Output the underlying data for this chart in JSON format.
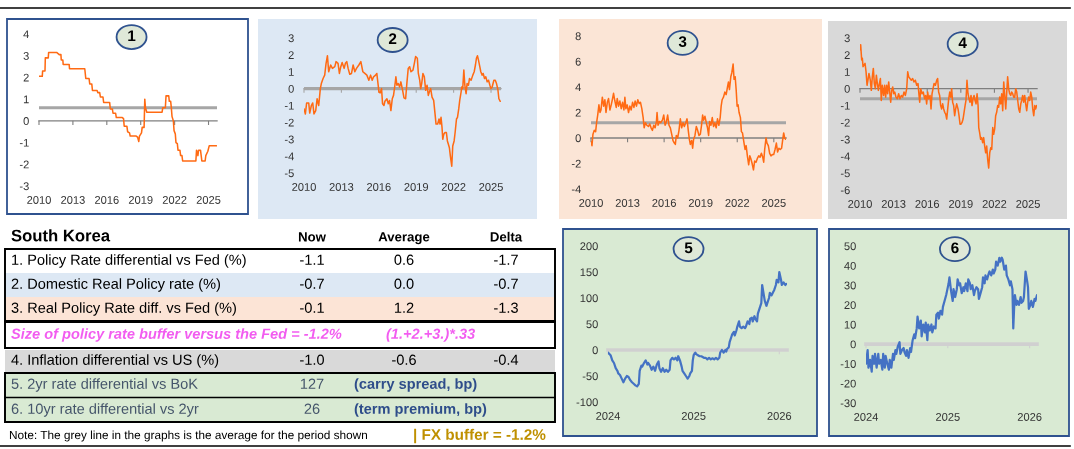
{
  "chart_data": [
    {
      "type": "line",
      "title": "1",
      "color": "#ff6a13",
      "xlim": [
        2010,
        2025.75
      ],
      "xticks": [
        2010,
        2013,
        2016,
        2019,
        2022,
        2025
      ],
      "ylim": [
        -3,
        4
      ],
      "yticks": [
        -3,
        -2,
        -1,
        0,
        1,
        2,
        3,
        4
      ],
      "ref_lines": [
        {
          "axis": "y",
          "value": 0.6,
          "color": "#a6a6a6"
        }
      ],
      "x": [
        2010.0,
        2010.29,
        2010.32,
        2010.53,
        2010.56,
        2010.82,
        2010.85,
        2011.56,
        2011.79,
        2011.94,
        2011.97,
        2012.11,
        2012.14,
        2012.67,
        2012.7,
        2014.05,
        2014.14,
        2014.43,
        2014.49,
        2014.67,
        2014.73,
        2015.14,
        2015.2,
        2015.37,
        2015.43,
        2015.66,
        2015.72,
        2016.25,
        2016.31,
        2016.49,
        2016.55,
        2016.78,
        2016.84,
        2017.37,
        2017.48,
        2017.54,
        2017.78,
        2017.84,
        2018.01,
        2018.07,
        2018.6,
        2018.72,
        2018.83,
        2018.89,
        2019.07,
        2019.13,
        2019.3,
        2019.36,
        2019.42,
        2019.54,
        2020.89,
        2020.95,
        2021.18,
        2021.24,
        2021.48,
        2021.53,
        2021.65,
        2021.71,
        2021.77,
        2021.89,
        2021.95,
        2022.06,
        2022.12,
        2022.24,
        2022.3,
        2022.47,
        2022.53,
        2022.65,
        2022.71,
        2023.88,
        2023.94,
        2024.06,
        2024.12,
        2024.29,
        2024.35,
        2024.41,
        2024.7,
        2024.76,
        2024.94,
        2025.06,
        2025.7
      ],
      "values": [
        2.05,
        2.05,
        2.3,
        2.3,
        2.9,
        2.9,
        3.15,
        3.15,
        3.05,
        3.05,
        2.8,
        2.8,
        2.6,
        2.6,
        2.4,
        2.4,
        1.95,
        1.95,
        1.7,
        1.7,
        1.4,
        1.4,
        1.3,
        1.3,
        1.1,
        1.1,
        0.85,
        0.85,
        0.55,
        0.55,
        0.35,
        0.35,
        0.15,
        0.15,
        0.1,
        -0.25,
        -0.25,
        -0.5,
        -0.55,
        -0.7,
        -0.7,
        -0.75,
        -0.95,
        -0.7,
        -0.55,
        -0.3,
        -0.3,
        1.0,
        0.6,
        0.4,
        0.4,
        0.6,
        0.6,
        1.15,
        1.15,
        0.9,
        0.9,
        0.6,
        0.2,
        0.0,
        -0.45,
        -0.6,
        -1.0,
        -1.05,
        -1.35,
        -1.35,
        -1.6,
        -1.6,
        -1.85,
        -1.85,
        -1.35,
        -1.6,
        -1.35,
        -1.35,
        -1.6,
        -1.85,
        -1.85,
        -1.6,
        -1.4,
        -1.15,
        -1.15
      ]
    },
    {
      "type": "line",
      "title": "2",
      "color": "#ff6a13",
      "xlim": [
        2010,
        2025.8
      ],
      "xticks": [
        2010,
        2013,
        2016,
        2019,
        2022,
        2025
      ],
      "ylim": [
        -5,
        3
      ],
      "yticks": [
        -5,
        -4,
        -3,
        -2,
        -1,
        0,
        1,
        2,
        3
      ],
      "ref_lines": [
        {
          "axis": "y",
          "value": 0.0,
          "color": "#a6a6a6"
        }
      ],
      "x": [
        2010.0,
        2010.11,
        2010.21,
        2010.38,
        2010.46,
        2010.59,
        2010.7,
        2010.8,
        2010.94,
        2011.05,
        2011.18,
        2011.31,
        2011.39,
        2011.53,
        2011.66,
        2011.77,
        2011.88,
        2011.98,
        2012.14,
        2012.28,
        2012.47,
        2012.57,
        2012.73,
        2012.84,
        2012.95,
        2013.06,
        2013.22,
        2013.32,
        2013.43,
        2013.54,
        2013.67,
        2013.81,
        2013.94,
        2014.08,
        2014.21,
        2014.4,
        2014.56,
        2014.72,
        2014.88,
        2015.04,
        2015.2,
        2015.34,
        2015.47,
        2015.58,
        2015.74,
        2015.84,
        2015.95,
        2016.01,
        2016.11,
        2016.22,
        2016.3,
        2016.41,
        2016.49,
        2016.65,
        2016.76,
        2016.86,
        2016.97,
        2017.08,
        2017.18,
        2017.29,
        2017.37,
        2017.45,
        2017.56,
        2017.67,
        2017.77,
        2017.91,
        2018.02,
        2018.15,
        2018.26,
        2018.36,
        2018.47,
        2018.58,
        2018.74,
        2018.85,
        2018.95,
        2019.09,
        2019.17,
        2019.28,
        2019.36,
        2019.44,
        2019.54,
        2019.65,
        2019.76,
        2019.87,
        2019.97,
        2020.05,
        2020.16,
        2020.27,
        2020.4,
        2020.51,
        2020.59,
        2020.72,
        2020.83,
        2020.91,
        2020.99,
        2021.07,
        2021.13,
        2021.21,
        2021.31,
        2021.42,
        2021.5,
        2021.58,
        2021.66,
        2021.74,
        2021.85,
        2021.93,
        2022.04,
        2022.12,
        2022.23,
        2022.31,
        2022.41,
        2022.49,
        2022.6,
        2022.65,
        2022.73,
        2022.82,
        2022.9,
        2023.0,
        2023.08,
        2023.19,
        2023.27,
        2023.4,
        2023.54,
        2023.65,
        2023.75,
        2023.83,
        2023.91,
        2023.99,
        2024.1,
        2024.18,
        2024.29,
        2024.37,
        2024.48,
        2024.58,
        2024.69,
        2024.8,
        2024.91,
        2024.99,
        2025.09,
        2025.23,
        2025.34,
        2025.44,
        2025.55,
        2025.63,
        2025.74
      ],
      "values": [
        -1.2,
        -1.5,
        -0.85,
        -0.85,
        -1.45,
        -1.0,
        -0.85,
        -1.5,
        -1.3,
        -0.6,
        -1.0,
        0.0,
        0.3,
        0.6,
        0.8,
        1.5,
        1.95,
        1.0,
        1.4,
        1.2,
        1.3,
        1.6,
        1.5,
        0.9,
        1.3,
        1.55,
        1.2,
        1.5,
        1.6,
        1.2,
        0.85,
        0.9,
        1.4,
        1.0,
        1.2,
        1.4,
        1.6,
        1.0,
        0.9,
        0.8,
        0.5,
        0.8,
        0.5,
        0.7,
        0.8,
        0.9,
        0.2,
        -0.2,
        -0.25,
        0.0,
        -0.9,
        -1.0,
        -0.75,
        -0.6,
        -0.9,
        -0.7,
        -1.3,
        -0.6,
        -0.4,
        0.2,
        0.7,
        0.2,
        0.3,
        0.1,
        0.4,
        -0.1,
        -0.55,
        -0.6,
        0.4,
        1.2,
        1.3,
        1.0,
        1.1,
        1.5,
        1.9,
        1.8,
        0.9,
        0.5,
        0.0,
        0.3,
        0.9,
        0.7,
        -0.1,
        0.2,
        -0.4,
        -0.2,
        0.0,
        -0.5,
        -0.7,
        -1.5,
        -2.1,
        -2.1,
        -1.8,
        -2.1,
        -1.7,
        -2.3,
        -3.0,
        -2.7,
        -2.6,
        -2.6,
        -3.1,
        -3.3,
        -3.5,
        -4.0,
        -4.6,
        -3.4,
        -3.1,
        -2.6,
        -1.8,
        -1.7,
        -1.2,
        -0.7,
        -0.2,
        0.1,
        0.0,
        1.1,
        0.2,
        -0.3,
        0.3,
        0.2,
        0.6,
        0.5,
        0.8,
        1.0,
        1.4,
        1.8,
        1.95,
        1.7,
        1.3,
        1.0,
        0.8,
        0.9,
        0.6,
        0.7,
        0.4,
        0.5,
        0.2,
        0.0,
        0.1,
        0.5,
        0.5,
        0.3,
        -0.05,
        -0.6,
        -0.75
      ]
    },
    {
      "type": "line",
      "title": "3",
      "color": "#ff6a13",
      "xlim": [
        2010,
        2026
      ],
      "xticks": [
        2010,
        2013,
        2016,
        2019,
        2022,
        2025
      ],
      "ylim": [
        -4,
        8
      ],
      "yticks": [
        -4,
        -2,
        0,
        2,
        4,
        6,
        8
      ],
      "ref_lines": [
        {
          "axis": "y",
          "value": 1.2,
          "color": "#a6a6a6"
        }
      ],
      "x": [
        2010.0,
        2010.08,
        2010.16,
        2010.27,
        2010.38,
        2010.46,
        2010.55,
        2010.65,
        2010.74,
        2010.82,
        2010.93,
        2011.04,
        2011.14,
        2011.23,
        2011.34,
        2011.44,
        2011.55,
        2011.66,
        2011.77,
        2011.85,
        2011.96,
        2012.07,
        2012.15,
        2012.26,
        2012.37,
        2012.48,
        2012.59,
        2012.7,
        2012.78,
        2012.86,
        2012.97,
        2013.08,
        2013.19,
        2013.3,
        2013.41,
        2013.52,
        2013.62,
        2013.73,
        2013.84,
        2013.95,
        2014.06,
        2014.17,
        2014.28,
        2014.36,
        2014.47,
        2014.58,
        2014.71,
        2014.82,
        2014.93,
        2015.04,
        2015.15,
        2015.26,
        2015.37,
        2015.42,
        2015.5,
        2015.61,
        2015.72,
        2015.86,
        2015.97,
        2016.08,
        2016.19,
        2016.29,
        2016.4,
        2016.51,
        2016.62,
        2016.73,
        2016.84,
        2016.92,
        2017.0,
        2017.11,
        2017.22,
        2017.33,
        2017.44,
        2017.55,
        2017.66,
        2017.77,
        2017.88,
        2017.98,
        2018.07,
        2018.15,
        2018.26,
        2018.34,
        2018.42,
        2018.53,
        2018.64,
        2018.75,
        2018.86,
        2018.97,
        2019.07,
        2019.16,
        2019.24,
        2019.35,
        2019.46,
        2019.56,
        2019.65,
        2019.73,
        2019.84,
        2019.95,
        2020.06,
        2020.16,
        2020.27,
        2020.38,
        2020.49,
        2020.6,
        2020.68,
        2020.76,
        2020.87,
        2020.98,
        2021.09,
        2021.2,
        2021.28,
        2021.36,
        2021.47,
        2021.55,
        2021.66,
        2021.74,
        2021.83,
        2021.91,
        2021.99,
        2022.07,
        2022.15,
        2022.26,
        2022.34,
        2022.43,
        2022.54,
        2022.64,
        2022.73,
        2022.83,
        2022.94,
        2023.03,
        2023.11,
        2023.22,
        2023.33,
        2023.43,
        2023.54,
        2023.65,
        2023.76,
        2023.87,
        2023.98,
        2024.09,
        2024.17,
        2024.25,
        2024.36,
        2024.44,
        2024.55,
        2024.66,
        2024.77,
        2024.88,
        2024.99,
        2025.1,
        2025.21,
        2025.31,
        2025.42,
        2025.53,
        2025.64,
        2025.72,
        2025.81,
        2025.89,
        2025.97
      ],
      "values": [
        -0.3,
        -0.6,
        0.3,
        0.6,
        0.5,
        1.2,
        1.8,
        2.6,
        2.0,
        2.2,
        3.2,
        2.5,
        3.0,
        2.0,
        2.8,
        3.1,
        2.2,
        2.6,
        3.1,
        3.5,
        2.9,
        2.4,
        3.1,
        2.5,
        2.9,
        2.3,
        2.8,
        2.2,
        3.2,
        2.3,
        2.6,
        2.0,
        2.5,
        2.2,
        2.8,
        2.4,
        2.9,
        2.5,
        3.0,
        2.7,
        2.8,
        2.3,
        1.6,
        0.8,
        1.2,
        1.0,
        0.9,
        1.1,
        0.8,
        0.6,
        1.0,
        0.8,
        1.3,
        2.0,
        1.0,
        1.3,
        1.2,
        1.4,
        1.8,
        1.0,
        1.3,
        1.8,
        1.0,
        0.8,
        0.3,
        -0.2,
        -0.4,
        -0.5,
        0.2,
        0.0,
        0.6,
        1.5,
        0.8,
        1.2,
        0.9,
        1.2,
        1.5,
        0.6,
        -0.1,
        -0.5,
        -0.2,
        -0.8,
        -0.1,
        0.2,
        0.9,
        0.6,
        0.2,
        0.3,
        1.0,
        1.8,
        1.4,
        1.7,
        1.2,
        0.8,
        0.2,
        1.3,
        1.0,
        1.6,
        0.9,
        1.2,
        0.8,
        1.5,
        1.0,
        1.6,
        2.5,
        3.0,
        3.2,
        3.6,
        3.4,
        4.0,
        4.4,
        3.8,
        4.8,
        5.1,
        5.8,
        4.6,
        4.8,
        3.8,
        2.5,
        2.6,
        2.0,
        1.6,
        0.5,
        0.4,
        -0.3,
        -0.9,
        -0.6,
        -1.4,
        -2.1,
        -1.4,
        -1.6,
        -2.0,
        -2.5,
        -1.8,
        -1.9,
        -1.6,
        -1.4,
        -1.5,
        -1.2,
        -1.5,
        -1.9,
        -0.9,
        0.0,
        -0.4,
        -0.6,
        -1.2,
        -1.4,
        -1.3,
        -1.3,
        -0.9,
        -0.4,
        -1.1,
        -0.8,
        -0.9,
        -0.8,
        -0.2,
        0.4,
        0.0,
        -0.1
      ]
    },
    {
      "type": "line",
      "title": "4",
      "color": "#ff6a13",
      "xlim": [
        2010,
        2025.8
      ],
      "xticks": [
        2010,
        2013,
        2016,
        2019,
        2022,
        2025
      ],
      "ylim": [
        -6,
        3
      ],
      "yticks": [
        -6,
        -5,
        -4,
        -3,
        -2,
        -1,
        0,
        1,
        2,
        3
      ],
      "ref_lines": [
        {
          "axis": "y",
          "value": -0.6,
          "color": "#a6a6a6"
        }
      ],
      "x": [
        2010.0,
        2010.06,
        2010.15,
        2010.21,
        2010.27,
        2010.36,
        2010.45,
        2010.54,
        2010.63,
        2010.71,
        2010.8,
        2010.92,
        2011.01,
        2011.1,
        2011.19,
        2011.28,
        2011.37,
        2011.46,
        2011.55,
        2011.64,
        2011.73,
        2011.82,
        2011.9,
        2011.99,
        2012.11,
        2012.2,
        2012.29,
        2012.38,
        2012.47,
        2012.56,
        2012.65,
        2012.74,
        2012.83,
        2012.92,
        2013.01,
        2013.1,
        2013.21,
        2013.33,
        2013.45,
        2013.57,
        2013.69,
        2013.81,
        2013.93,
        2014.05,
        2014.17,
        2014.26,
        2014.35,
        2014.46,
        2014.58,
        2014.7,
        2014.82,
        2014.94,
        2015.06,
        2015.18,
        2015.27,
        2015.33,
        2015.42,
        2015.54,
        2015.65,
        2015.77,
        2015.86,
        2015.95,
        2016.04,
        2016.13,
        2016.25,
        2016.34,
        2016.43,
        2016.52,
        2016.61,
        2016.73,
        2016.85,
        2016.93,
        2017.02,
        2017.11,
        2017.2,
        2017.29,
        2017.38,
        2017.47,
        2017.56,
        2017.65,
        2017.74,
        2017.83,
        2017.92,
        2018.01,
        2018.1,
        2018.18,
        2018.27,
        2018.36,
        2018.45,
        2018.54,
        2018.63,
        2018.75,
        2018.84,
        2018.93,
        2019.02,
        2019.11,
        2019.2,
        2019.29,
        2019.38,
        2019.46,
        2019.55,
        2019.64,
        2019.73,
        2019.82,
        2019.91,
        2020.0,
        2020.09,
        2020.18,
        2020.27,
        2020.36,
        2020.45,
        2020.54,
        2020.6,
        2020.68,
        2020.77,
        2020.86,
        2020.95,
        2021.04,
        2021.13,
        2021.22,
        2021.31,
        2021.4,
        2021.49,
        2021.58,
        2021.67,
        2021.76,
        2021.85,
        2021.93,
        2022.02,
        2022.11,
        2022.2,
        2022.29,
        2022.38,
        2022.47,
        2022.56,
        2022.65,
        2022.74,
        2022.83,
        2022.92,
        2023.01,
        2023.1,
        2023.18,
        2023.27,
        2023.36,
        2023.45,
        2023.54,
        2023.63,
        2023.72,
        2023.81,
        2023.9,
        2023.99,
        2024.08,
        2024.17,
        2024.26,
        2024.35,
        2024.43,
        2024.52,
        2024.61,
        2024.7,
        2024.79,
        2024.88,
        2024.97,
        2025.06,
        2025.15,
        2025.24,
        2025.33,
        2025.42,
        2025.51,
        2025.6,
        2025.68,
        2025.77
      ],
      "values": [
        2.3,
        2.6,
        1.7,
        1.8,
        1.3,
        1.4,
        1.5,
        1.0,
        0.2,
        0.5,
        0.9,
        0.5,
        -0.1,
        0.7,
        1.2,
        0.3,
        0.0,
        0.8,
        0.3,
        -0.1,
        0.3,
        0.6,
        -0.7,
        0.2,
        -0.4,
        0.2,
        -0.5,
        0.2,
        -0.3,
        0.4,
        -0.2,
        -0.8,
        -0.1,
        0.1,
        -0.3,
        -0.2,
        -0.5,
        -0.6,
        -0.3,
        -0.6,
        -0.4,
        -0.5,
        -0.2,
        -0.4,
        0.0,
        1.0,
        0.7,
        0.6,
        0.5,
        0.6,
        0.4,
        0.5,
        0.2,
        0.3,
        -0.4,
        -0.8,
        0.0,
        -0.3,
        -0.2,
        -0.6,
        -0.4,
        -0.9,
        -0.2,
        -0.6,
        -0.4,
        -1.2,
        -0.3,
        0.0,
        0.3,
        0.2,
        0.5,
        0.6,
        -0.2,
        -0.4,
        -1.0,
        -1.2,
        -0.9,
        -1.2,
        -1.4,
        -1.5,
        -1.8,
        -1.2,
        -0.6,
        -0.2,
        -0.5,
        0.0,
        -0.8,
        -1.0,
        -1.6,
        -1.2,
        -0.9,
        -1.2,
        -1.6,
        -2.1,
        -2.1,
        -2.0,
        -1.8,
        -1.4,
        -1.0,
        -0.7,
        0.5,
        -0.3,
        -0.6,
        -0.8,
        -0.4,
        -1.0,
        -0.6,
        -0.4,
        -0.7,
        -0.9,
        -0.3,
        -1.0,
        -2.3,
        -2.6,
        -3.0,
        -2.9,
        -3.2,
        -2.9,
        -3.4,
        -3.8,
        -3.4,
        -4.2,
        -4.7,
        -3.8,
        -3.5,
        -3.6,
        -2.3,
        -2.7,
        -2.4,
        -1.6,
        -1.4,
        -1.0,
        -1.1,
        -0.5,
        -0.9,
        -0.3,
        -1.3,
        0.4,
        -0.4,
        -1.2,
        -0.2,
        0.7,
        0.0,
        -0.3,
        -0.4,
        -0.2,
        -0.3,
        -0.5,
        -0.5,
        0.0,
        -0.2,
        -0.7,
        -1.2,
        -1.4,
        -0.9,
        -0.7,
        -0.4,
        -0.8,
        -0.4,
        -0.9,
        -1.3,
        -0.8,
        -0.5,
        -0.7,
        -0.2,
        -0.5,
        -1.2,
        -1.6,
        -1.0,
        -1.2,
        -1.0
      ]
    },
    {
      "type": "other",
      "title": "South Korea",
      "annotations": [
        "Now",
        "Average",
        "Delta",
        "1. Policy Rate differential vs Fed (%)",
        "-1.1",
        "0.6",
        "-1.7",
        "2. Domestic Real Policy rate (%)",
        "-0.7",
        "0.0",
        "-0.7",
        "3. Real Policy Rate diff. vs Fed (%)",
        "-0.1",
        "1.2",
        "-1.3",
        "Size of policy rate buffer versus the Fed = -1.2%",
        "(1.+2.+3.)*.33",
        "4. Inflation differential vs US (%)",
        "-1.0",
        "-0.6",
        "-0.4",
        "5. 2yr rate differential vs BoK",
        "127",
        "(carry spread, bp)",
        "6. 10yr rate differential vs 2yr",
        "26",
        "(term premium, bp)",
        "Note: The grey line in the graphs is the average for the period shown",
        "| FX buffer = -1.2%"
      ]
    },
    {
      "type": "line",
      "title": "5",
      "color": "#4472c4",
      "xlim": [
        2024,
        2026.09
      ],
      "xticks": [
        2024,
        2025,
        2026
      ],
      "ylim": [
        -100,
        200
      ],
      "yticks": [
        -100,
        -50,
        0,
        50,
        100,
        150,
        200
      ],
      "x": [
        2024.0,
        2024.03,
        2024.05,
        2024.07,
        2024.09,
        2024.11,
        2024.12,
        2024.14,
        2024.16,
        2024.18,
        2024.2,
        2024.22,
        2024.24,
        2024.26,
        2024.28,
        2024.3,
        2024.32,
        2024.34,
        2024.36,
        2024.37,
        2024.39,
        2024.4,
        2024.42,
        2024.44,
        2024.46,
        2024.47,
        2024.49,
        2024.51,
        2024.53,
        2024.55,
        2024.57,
        2024.59,
        2024.6,
        2024.62,
        2024.64,
        2024.66,
        2024.68,
        2024.7,
        2024.72,
        2024.73,
        2024.75,
        2024.77,
        2024.79,
        2024.81,
        2024.82,
        2024.84,
        2024.86,
        2024.87,
        2024.89,
        2024.91,
        2024.93,
        2024.95,
        2024.96,
        2024.98,
        2024.99,
        2025.0,
        2025.02,
        2025.03,
        2025.05,
        2025.07,
        2025.09,
        2025.12,
        2025.14,
        2025.16,
        2025.18,
        2025.2,
        2025.22,
        2025.24,
        2025.26,
        2025.28,
        2025.3,
        2025.31,
        2025.33,
        2025.35,
        2025.37,
        2025.38,
        2025.39,
        2025.41,
        2025.42,
        2025.44,
        2025.45,
        2025.47,
        2025.48,
        2025.5,
        2025.51,
        2025.53,
        2025.54,
        2025.56,
        2025.58,
        2025.6,
        2025.61,
        2025.63,
        2025.65,
        2025.66,
        2025.68,
        2025.69,
        2025.71,
        2025.72,
        2025.74,
        2025.75,
        2025.77,
        2025.79,
        2025.8,
        2025.82,
        2025.83,
        2025.85,
        2025.86,
        2025.88,
        2025.89,
        2025.91,
        2025.93,
        2025.94,
        2025.96,
        2025.97,
        2025.99,
        2026.0,
        2026.02,
        2026.03,
        2026.05,
        2026.07,
        2026.08
      ],
      "values": [
        -5,
        -10,
        -20,
        -25,
        -35,
        -40,
        -45,
        -48,
        -55,
        -62,
        -55,
        -50,
        -52,
        -58,
        -62,
        -65,
        -68,
        -70,
        -65,
        -40,
        -30,
        -32,
        -25,
        -20,
        -28,
        -25,
        -30,
        -38,
        -32,
        -40,
        -28,
        -22,
        -35,
        -42,
        -35,
        -42,
        -38,
        -42,
        -38,
        -20,
        -15,
        -18,
        -15,
        -20,
        -12,
        -20,
        -32,
        -40,
        -45,
        -50,
        -55,
        -50,
        -45,
        -40,
        -20,
        -10,
        -5,
        -8,
        -10,
        -12,
        -12,
        -15,
        -15,
        -18,
        -15,
        -18,
        -16,
        -18,
        -15,
        -18,
        -15,
        -5,
        0,
        -5,
        0,
        -3,
        2,
        5,
        15,
        25,
        30,
        35,
        28,
        38,
        45,
        55,
        45,
        42,
        45,
        42,
        45,
        55,
        50,
        60,
        62,
        55,
        65,
        60,
        55,
        70,
        80,
        90,
        125,
        105,
        95,
        85,
        90,
        100,
        110,
        105,
        112,
        115,
        125,
        135,
        130,
        150,
        135,
        125,
        130,
        125,
        127
      ]
    },
    {
      "type": "line",
      "title": "6",
      "color": "#4472c4",
      "xlim": [
        2024,
        2026.09
      ],
      "xticks": [
        2024,
        2025,
        2026
      ],
      "ylim": [
        -30,
        50
      ],
      "yticks": [
        -30,
        -20,
        -10,
        0,
        10,
        20,
        30,
        40,
        50
      ],
      "x": [
        2024.0,
        2024.02,
        2024.03,
        2024.05,
        2024.07,
        2024.08,
        2024.1,
        2024.11,
        2024.13,
        2024.15,
        2024.16,
        2024.18,
        2024.2,
        2024.21,
        2024.23,
        2024.24,
        2024.26,
        2024.28,
        2024.29,
        2024.31,
        2024.33,
        2024.34,
        2024.36,
        2024.37,
        2024.39,
        2024.41,
        2024.42,
        2024.44,
        2024.46,
        2024.47,
        2024.49,
        2024.5,
        2024.52,
        2024.54,
        2024.55,
        2024.57,
        2024.59,
        2024.6,
        2024.62,
        2024.63,
        2024.65,
        2024.67,
        2024.68,
        2024.7,
        2024.72,
        2024.73,
        2024.75,
        2024.76,
        2024.78,
        2024.8,
        2024.81,
        2024.83,
        2024.85,
        2024.86,
        2024.88,
        2024.89,
        2024.91,
        2024.93,
        2024.94,
        2024.96,
        2024.98,
        2024.99,
        2025.01,
        2025.02,
        2025.04,
        2025.06,
        2025.07,
        2025.09,
        2025.11,
        2025.12,
        2025.14,
        2025.15,
        2025.17,
        2025.19,
        2025.2,
        2025.22,
        2025.24,
        2025.25,
        2025.27,
        2025.28,
        2025.3,
        2025.32,
        2025.33,
        2025.35,
        2025.37,
        2025.38,
        2025.4,
        2025.42,
        2025.43,
        2025.45,
        2025.46,
        2025.48,
        2025.5,
        2025.51,
        2025.53,
        2025.55,
        2025.56,
        2025.58,
        2025.59,
        2025.61,
        2025.63,
        2025.64,
        2025.66,
        2025.67,
        2025.69,
        2025.71,
        2025.72,
        2025.74,
        2025.76,
        2025.77,
        2025.79,
        2025.8,
        2025.81,
        2025.82,
        2025.84,
        2025.85,
        2025.87,
        2025.89,
        2025.9,
        2025.92,
        2025.93,
        2025.95,
        2025.97,
        2025.98,
        2025.99,
        2026.01,
        2026.02,
        2026.04,
        2026.06,
        2026.07,
        2026.09
      ],
      "values": [
        -10,
        -3,
        -12,
        -8,
        -14,
        -6,
        -10,
        -5,
        -12,
        -5,
        -10,
        -8,
        -13,
        -5,
        -12,
        -6,
        -10,
        -13,
        -8,
        -12,
        -5,
        -8,
        -3,
        -5,
        -1,
        1,
        -5,
        -3,
        -2,
        -4,
        -6,
        -3,
        -7,
        -2,
        -4,
        2,
        5,
        3,
        8,
        14,
        8,
        12,
        4,
        10,
        6,
        11,
        2,
        10,
        7,
        10,
        6,
        9,
        8,
        15,
        16,
        13,
        17,
        15,
        19,
        22,
        25,
        27,
        31,
        34,
        27,
        22,
        28,
        24,
        28,
        33,
        30,
        31,
        26,
        29,
        27,
        31,
        27,
        33,
        31,
        28,
        30,
        25,
        27,
        29,
        28,
        23,
        26,
        29,
        34,
        31,
        35,
        33,
        36,
        37,
        35,
        38,
        36,
        38,
        42,
        40,
        44,
        42,
        44,
        43,
        38,
        40,
        35,
        33,
        30,
        32,
        28,
        8,
        18,
        25,
        20,
        22,
        20,
        24,
        21,
        22,
        24,
        37,
        32,
        29,
        18,
        20,
        22,
        19,
        23,
        22,
        25
      ]
    }
  ]
}
